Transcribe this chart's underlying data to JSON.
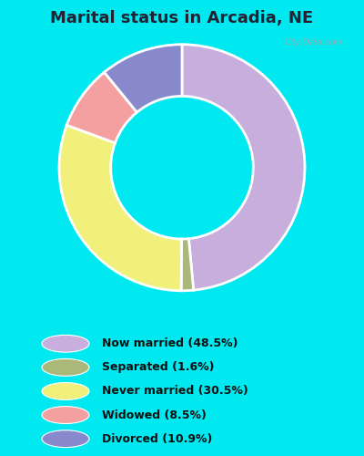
{
  "title": "Marital status in Arcadia, NE",
  "slices": [
    48.5,
    1.6,
    30.5,
    8.5,
    10.9
  ],
  "colors": [
    "#c8aedd",
    "#aab87a",
    "#f0f07a",
    "#f4a0a0",
    "#8888cc"
  ],
  "labels": [
    "Now married (48.5%)",
    "Separated (1.6%)",
    "Never married (30.5%)",
    "Widowed (8.5%)",
    "Divorced (10.9%)"
  ],
  "legend_colors": [
    "#c8aedd",
    "#aab87a",
    "#f0f07a",
    "#f4a0a0",
    "#8888cc"
  ],
  "background_outer": "#00e8f0",
  "background_panel": "#d4edd8",
  "watermark": "City-Data.com",
  "title_fontsize": 13,
  "start_angle": 90,
  "title_color": "#222233"
}
